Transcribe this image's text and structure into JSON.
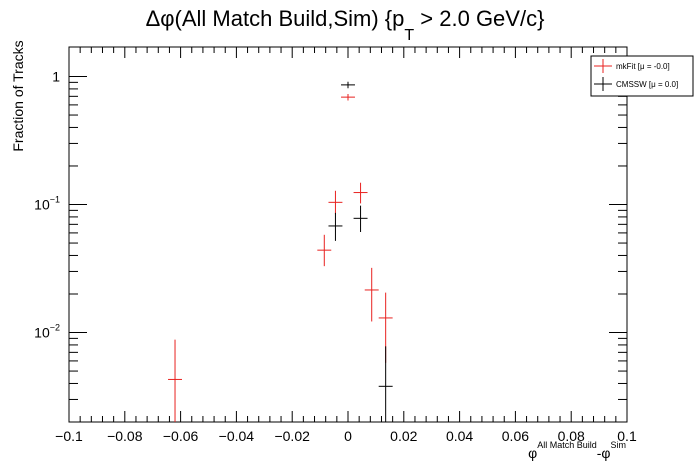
{
  "chart_data": {
    "type": "scatter",
    "title": {
      "prefix": "Δφ(All Match Build,Sim) {p",
      "sub": "T",
      "suffix": " > 2.0 GeV/c}"
    },
    "ylabel": "Fraction of Tracks",
    "xlabel": {
      "phi1": "φ",
      "sup1": "All Match Build",
      "sep": "-φ",
      "sup2": "Sim"
    },
    "xlim": [
      -0.1,
      0.1
    ],
    "ylim": [
      0.002,
      1.7
    ],
    "yscale": "log",
    "grid": false,
    "legend_position": "top-right",
    "x_ticks": [
      {
        "value": -0.1,
        "label": "−0.1"
      },
      {
        "value": -0.08,
        "label": "−0.08"
      },
      {
        "value": -0.06,
        "label": "−0.06"
      },
      {
        "value": -0.04,
        "label": "−0.04"
      },
      {
        "value": -0.02,
        "label": "−0.02"
      },
      {
        "value": 0,
        "label": "0"
      },
      {
        "value": 0.02,
        "label": "0.02"
      },
      {
        "value": 0.04,
        "label": "0.04"
      },
      {
        "value": 0.06,
        "label": "0.06"
      },
      {
        "value": 0.08,
        "label": "0.08"
      },
      {
        "value": 0.1,
        "label": "0.1"
      }
    ],
    "y_ticks": [
      {
        "value": 1,
        "base": "1",
        "exp": ""
      },
      {
        "value": 0.1,
        "base": "10",
        "exp": "−1"
      },
      {
        "value": 0.01,
        "base": "10",
        "exp": "−2"
      }
    ],
    "series": [
      {
        "name": "mkFit",
        "legend_label": "mkFit  [μ = -0.0]",
        "color": "#e8211f",
        "points": [
          {
            "x": -0.062,
            "y": 0.0043,
            "ylo": 0.0015,
            "yhi": 0.0088
          },
          {
            "x": -0.0085,
            "y": 0.044,
            "ylo": 0.033,
            "yhi": 0.058
          },
          {
            "x": -0.0045,
            "y": 0.104,
            "ylo": 0.084,
            "yhi": 0.128
          },
          {
            "x": 0,
            "y": 0.69,
            "ylo": 0.65,
            "yhi": 0.73
          },
          {
            "x": 0.0045,
            "y": 0.124,
            "ylo": 0.102,
            "yhi": 0.148
          },
          {
            "x": 0.0085,
            "y": 0.0215,
            "ylo": 0.0122,
            "yhi": 0.032
          },
          {
            "x": 0.0135,
            "y": 0.013,
            "ylo": 0.0058,
            "yhi": 0.0205
          }
        ]
      },
      {
        "name": "CMSSW",
        "legend_label": "CMSSW  [μ =  0.0]",
        "color": "#000000",
        "points": [
          {
            "x": -0.0045,
            "y": 0.068,
            "ylo": 0.052,
            "yhi": 0.086
          },
          {
            "x": 0,
            "y": 0.86,
            "ylo": 0.81,
            "yhi": 0.91
          },
          {
            "x": 0.0045,
            "y": 0.078,
            "ylo": 0.061,
            "yhi": 0.098
          },
          {
            "x": 0.0135,
            "y": 0.0038,
            "ylo": 0.0015,
            "yhi": 0.0078
          }
        ]
      }
    ]
  }
}
